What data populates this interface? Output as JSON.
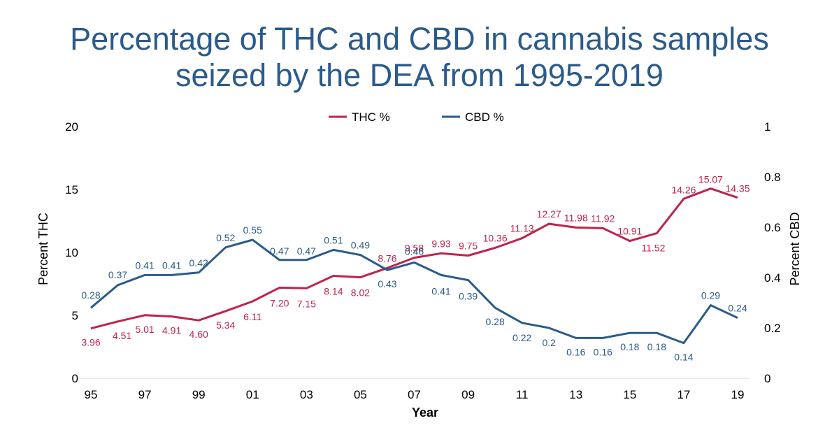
{
  "title_lines": [
    "Percentage of THC and CBD in cannabis samples",
    "seized by the DEA from 1995-2019"
  ],
  "colors": {
    "thc": "#c0234b",
    "cbd": "#2b5b8b",
    "title": "#2b5b8b",
    "axis": "#d9d9d9"
  },
  "chart_data": {
    "type": "line",
    "title": "Percentage of THC and CBD in cannabis samples seized by the DEA from 1995-2019",
    "xlabel": "Year",
    "ylabel_left": "Percent THC",
    "ylabel_right": "Percent CBD",
    "x_ticks": [
      "95",
      "97",
      "99",
      "01",
      "03",
      "05",
      "07",
      "09",
      "11",
      "13",
      "15",
      "17",
      "19"
    ],
    "years": [
      1995,
      1996,
      1997,
      1998,
      1999,
      2000,
      2001,
      2002,
      2003,
      2004,
      2005,
      2006,
      2007,
      2008,
      2009,
      2010,
      2011,
      2012,
      2013,
      2014,
      2015,
      2016,
      2017,
      2018,
      2019
    ],
    "ylim_left": [
      0,
      20
    ],
    "yticks_left": [
      "0",
      "5",
      "10",
      "15",
      "20"
    ],
    "ylim_right": [
      0,
      1
    ],
    "yticks_right": [
      "0",
      "0.2",
      "0.4",
      "0.6",
      "0.8",
      "1"
    ],
    "legend": [
      "THC %",
      "CBD %"
    ],
    "series": [
      {
        "name": "THC %",
        "axis": "left",
        "values": [
          3.96,
          4.51,
          5.01,
          4.91,
          4.6,
          5.34,
          6.11,
          7.2,
          7.15,
          8.14,
          8.02,
          8.76,
          9.58,
          9.93,
          9.75,
          10.36,
          11.13,
          12.27,
          11.98,
          11.92,
          10.91,
          11.52,
          14.26,
          15.07,
          14.35
        ],
        "labels": [
          "3.96",
          "4.51",
          "5.01",
          "4.91",
          "4.60",
          "5.34",
          "6.11",
          "7.20",
          "7.15",
          "8.14",
          "8.02",
          "8.76",
          "9.58",
          "9.93",
          "9.75",
          "10.36",
          "11.13",
          "12.27",
          "11.98",
          "11.92",
          "10.91",
          "11.52",
          "14.26",
          "15.07",
          "14.35"
        ]
      },
      {
        "name": "CBD %",
        "axis": "right",
        "values": [
          0.28,
          0.37,
          0.41,
          0.41,
          0.42,
          0.52,
          0.55,
          0.47,
          0.47,
          0.51,
          0.49,
          0.43,
          0.46,
          0.41,
          0.39,
          0.28,
          0.22,
          0.2,
          0.16,
          0.16,
          0.18,
          0.18,
          0.14,
          0.29,
          0.24
        ],
        "labels": [
          "0.28",
          "0.37",
          "0.41",
          "0.41",
          "0.42",
          "0.52",
          "0.55",
          "0.47",
          "0.47",
          "0.51",
          "0.49",
          "0.43",
          "0.46",
          "0.41",
          "0.39",
          "0.28",
          "0.22",
          "0.2",
          "0.16",
          "0.16",
          "0.18",
          "0.18",
          "0.14",
          "0.29",
          "0.24"
        ]
      }
    ]
  }
}
